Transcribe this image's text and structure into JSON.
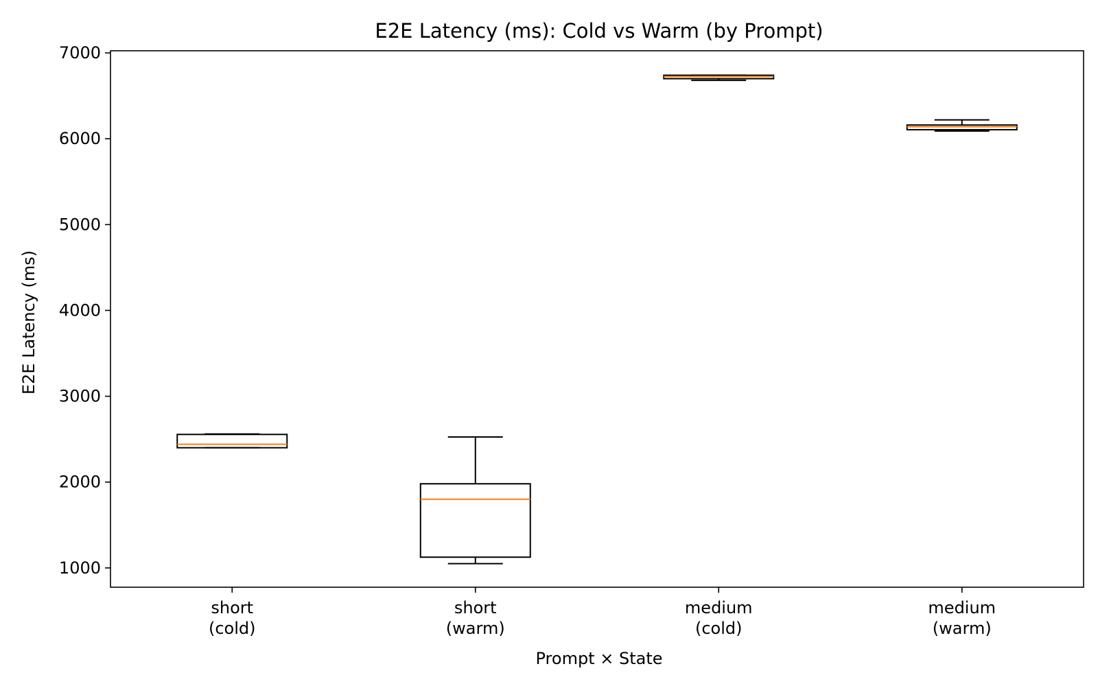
{
  "chart_data": {
    "type": "box",
    "title": "E2E Latency (ms): Cold vs Warm (by Prompt)",
    "xlabel": "Prompt × State",
    "ylabel": "E2E Latency (ms)",
    "ylim": [
      775,
      7025
    ],
    "yticks": [
      1000,
      2000,
      3000,
      4000,
      5000,
      6000,
      7000
    ],
    "grid": false,
    "categories": [
      [
        "short",
        "(cold)"
      ],
      [
        "short",
        "(warm)"
      ],
      [
        "medium",
        "(cold)"
      ],
      [
        "medium",
        "(warm)"
      ]
    ],
    "boxes": [
      {
        "whisker_low": 2400,
        "q1": 2400,
        "median": 2440,
        "q3": 2555,
        "whisker_high": 2560
      },
      {
        "whisker_low": 1050,
        "q1": 1125,
        "median": 1800,
        "q3": 1980,
        "whisker_high": 2525
      },
      {
        "whisker_low": 6680,
        "q1": 6700,
        "median": 6725,
        "q3": 6740,
        "whisker_high": 6740
      },
      {
        "whisker_low": 6090,
        "q1": 6105,
        "median": 6140,
        "q3": 6160,
        "whisker_high": 6220
      }
    ],
    "colors": {
      "box": "#000000",
      "median": "#ff7f0e",
      "axis": "#000000"
    }
  }
}
